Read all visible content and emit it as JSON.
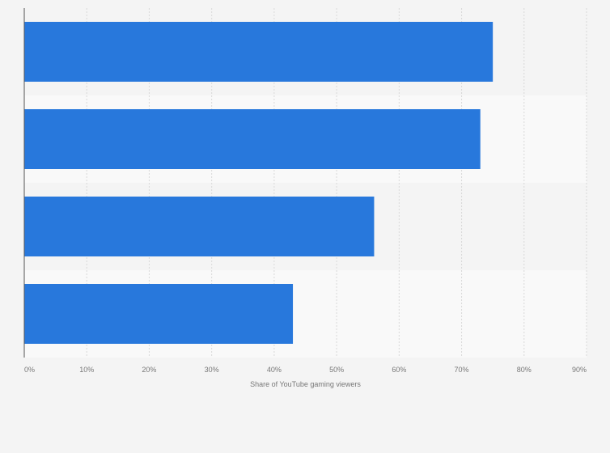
{
  "chart_data": {
    "type": "bar",
    "orientation": "horizontal",
    "categories": [
      "",
      "",
      "",
      ""
    ],
    "values": [
      75,
      73,
      56,
      43
    ],
    "xlabel": "Share of YouTube gaming viewers",
    "ylabel": "",
    "xlim": [
      0,
      90
    ],
    "xticks": [
      "0%",
      "10%",
      "20%",
      "30%",
      "40%",
      "50%",
      "60%",
      "70%",
      "80%",
      "90%"
    ],
    "grid": true,
    "legend": "none"
  },
  "colors": {
    "bar": "#2878dc",
    "background": "#f4f4f4",
    "band_alt": "#f9f9f9",
    "grid": "#d9d9d9",
    "axis": "#555555",
    "tick_text": "#777777"
  }
}
